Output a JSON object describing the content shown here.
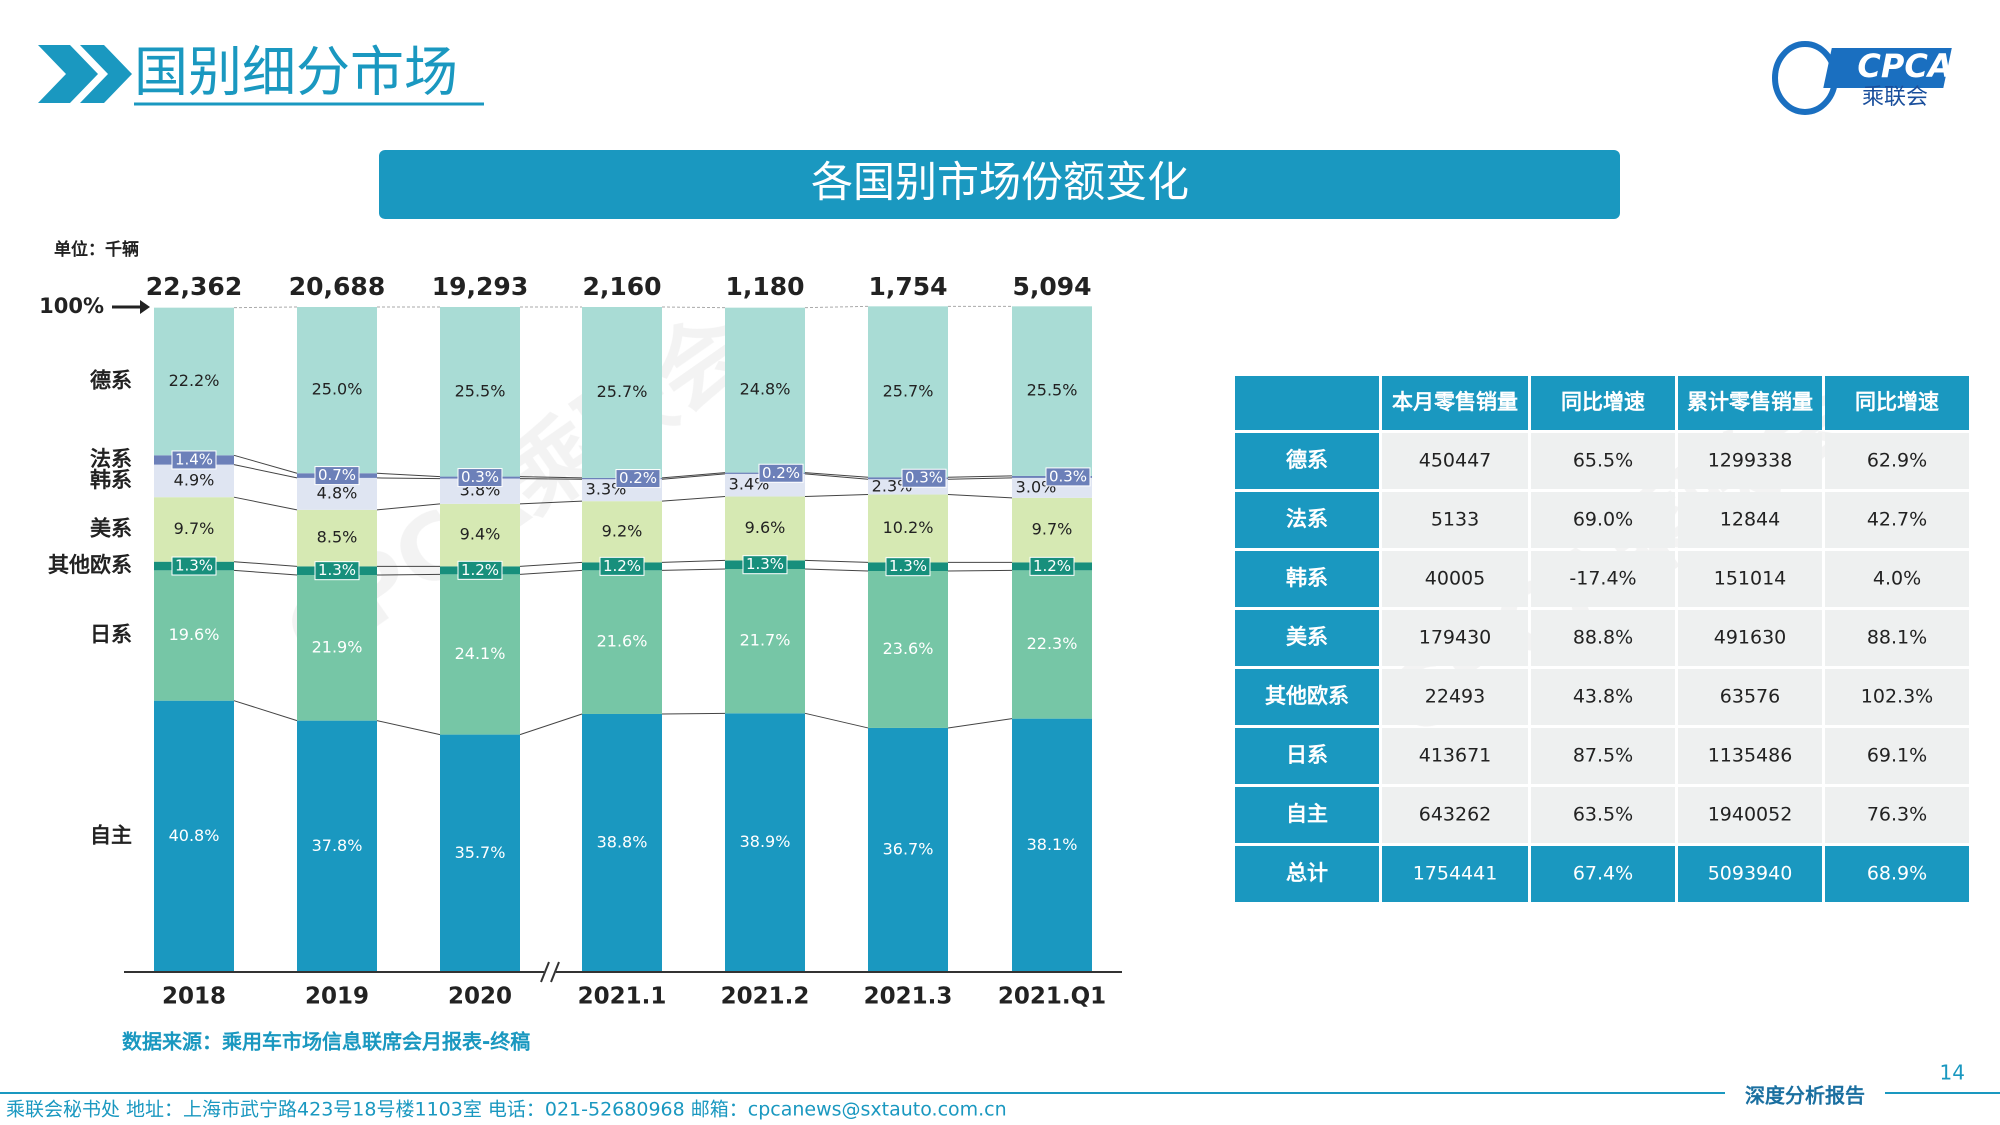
{
  "header": {
    "title": "国别细分市场",
    "logo": {
      "name": "CPCA",
      "subtitle": "乘联会"
    }
  },
  "banner": "各国别市场份额变化",
  "watermark": "CPCA乘联会",
  "chart_data": {
    "type": "stacked_bar",
    "unit": "单位：千辆",
    "categories": [
      "2018",
      "2019",
      "2020",
      "2021.1",
      "2021.2",
      "2021.3",
      "2021.Q1"
    ],
    "totals": {
      "values": [
        22362,
        20688,
        19293,
        2160,
        1180,
        1754,
        5094
      ],
      "value_labels": [
        "22,362",
        "20,688",
        "19,293",
        "2,160",
        "1,180",
        "1,754",
        "5,094"
      ]
    },
    "ylim": [
      0,
      100
    ],
    "yticks": [
      {
        "value": 100,
        "label": "100%"
      }
    ],
    "series": [
      {
        "name": "自主",
        "color": "#1a98c0",
        "values": [
          40.8,
          37.8,
          35.7,
          38.8,
          38.9,
          36.7,
          38.1
        ],
        "value_labels": [
          "40.8%",
          "37.8%",
          "35.7%",
          "38.8%",
          "38.9%",
          "36.7%",
          "38.1%"
        ]
      },
      {
        "name": "日系",
        "color": "#76c6a6",
        "values": [
          19.6,
          21.9,
          24.1,
          21.6,
          21.7,
          23.6,
          22.3
        ],
        "value_labels": [
          "19.6%",
          "21.9%",
          "24.1%",
          "21.6%",
          "21.7%",
          "23.6%",
          "22.3%"
        ]
      },
      {
        "name": "其他欧系",
        "color": "#178f7c",
        "values": [
          1.3,
          1.3,
          1.2,
          1.2,
          1.3,
          1.3,
          1.2
        ],
        "value_labels": [
          "1.3%",
          "1.3%",
          "1.2%",
          "1.2%",
          "1.3%",
          "1.3%",
          "1.2%"
        ]
      },
      {
        "name": "美系",
        "color": "#d6e9b3",
        "values": [
          9.7,
          8.5,
          9.4,
          9.2,
          9.6,
          10.2,
          9.7
        ],
        "value_labels": [
          "9.7%",
          "8.5%",
          "9.4%",
          "9.2%",
          "9.6%",
          "10.2%",
          "9.7%"
        ]
      },
      {
        "name": "韩系",
        "color": "#dfe5f2",
        "values": [
          4.9,
          4.8,
          3.8,
          3.3,
          3.4,
          2.3,
          3.0
        ],
        "value_labels": [
          "4.9%",
          "4.8%",
          "3.8%",
          "3.3%",
          "3.4%",
          "2.3%",
          "3.0%"
        ]
      },
      {
        "name": "法系",
        "color": "#6c80b9",
        "values": [
          1.4,
          0.7,
          0.3,
          0.2,
          0.2,
          0.3,
          0.3
        ],
        "value_labels": [
          "1.4%",
          "0.7%",
          "0.3%",
          "0.2%",
          "0.2%",
          "0.3%",
          "0.3%"
        ]
      },
      {
        "name": "德系",
        "color": "#a9dcd5",
        "values": [
          22.2,
          25.0,
          25.5,
          25.7,
          24.8,
          25.7,
          25.5
        ],
        "value_labels": [
          "22.2%",
          "25.0%",
          "25.5%",
          "25.7%",
          "24.8%",
          "25.7%",
          "25.5%"
        ]
      }
    ],
    "source": "数据来源：乘用车市场信息联席会月报表-终稿"
  },
  "table": {
    "columns": [
      "本月零售销量",
      "同比增速",
      "累计零售销量",
      "同比增速"
    ],
    "rows": [
      {
        "label": "德系",
        "cells": [
          "450447",
          "65.5%",
          "1299338",
          "62.9%"
        ]
      },
      {
        "label": "法系",
        "cells": [
          "5133",
          "69.0%",
          "12844",
          "42.7%"
        ]
      },
      {
        "label": "韩系",
        "cells": [
          "40005",
          "-17.4%",
          "151014",
          "4.0%"
        ]
      },
      {
        "label": "美系",
        "cells": [
          "179430",
          "88.8%",
          "491630",
          "88.1%"
        ]
      },
      {
        "label": "其他欧系",
        "cells": [
          "22493",
          "43.8%",
          "63576",
          "102.3%"
        ]
      },
      {
        "label": "日系",
        "cells": [
          "413671",
          "87.5%",
          "1135486",
          "69.1%"
        ]
      },
      {
        "label": "自主",
        "cells": [
          "643262",
          "63.5%",
          "1940052",
          "76.3%"
        ]
      },
      {
        "label": "总计",
        "cells": [
          "1754441",
          "67.4%",
          "5093940",
          "68.9%"
        ]
      }
    ]
  },
  "footer": {
    "contact": "乘联会秘书处   地址：上海市武宁路423号18号楼1103室   电话：021-52680968   邮箱：cpcanews@sxtauto.com.cn",
    "report": "深度分析报告",
    "page": "14"
  }
}
